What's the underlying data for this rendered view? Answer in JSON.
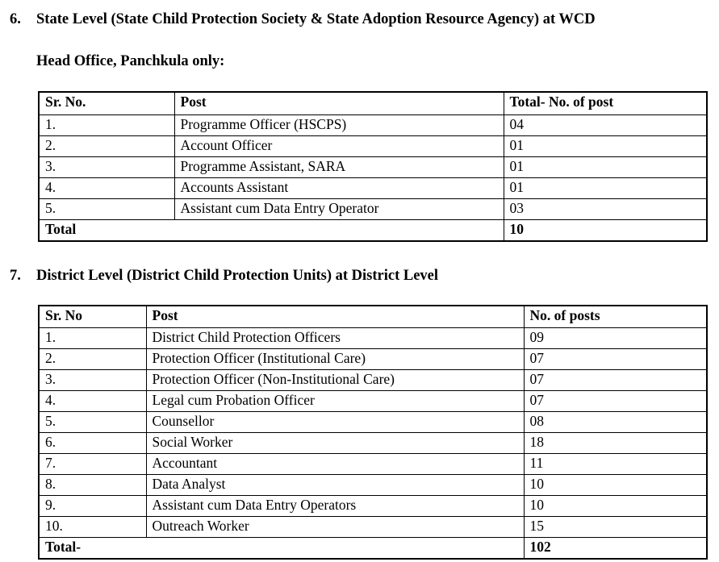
{
  "colors": {
    "background": "#ffffff",
    "text": "#000000",
    "table_border": "#000000"
  },
  "sections": [
    {
      "number": "6.",
      "heading_line1": "State Level (State Child Protection Society & State Adoption Resource Agency) at WCD",
      "heading_line2": "Head Office, Panchkula only:",
      "table": {
        "col_headers": [
          "Sr. No.",
          "Post",
          "Total- No. of post"
        ],
        "rows": [
          {
            "sr": "1.",
            "post": "Programme Officer (HSCPS)",
            "count": "04"
          },
          {
            "sr": "2.",
            "post": "Account Officer",
            "count": "01"
          },
          {
            "sr": "3.",
            "post": "Programme Assistant, SARA",
            "count": "01"
          },
          {
            "sr": "4.",
            "post": "Accounts Assistant",
            "count": "01"
          },
          {
            "sr": "5.",
            "post": "Assistant cum Data Entry Operator",
            "count": "03"
          }
        ],
        "total_label": "Total",
        "total_value": "10"
      }
    },
    {
      "number": "7.",
      "heading_line1": "District Level (District Child Protection Units) at District Level",
      "table": {
        "col_headers": [
          "Sr. No",
          "Post",
          "No. of posts"
        ],
        "rows": [
          {
            "sr": "1.",
            "post": "District Child Protection Officers",
            "count": "09"
          },
          {
            "sr": "2.",
            "post": "Protection Officer (Institutional Care)",
            "count": "07"
          },
          {
            "sr": "3.",
            "post": "Protection Officer (Non-Institutional Care)",
            "count": "07"
          },
          {
            "sr": "4.",
            "post": "Legal cum Probation Officer",
            "count": "07"
          },
          {
            "sr": "5.",
            "post": "Counsellor",
            "count": "08"
          },
          {
            "sr": "6.",
            "post": "Social Worker",
            "count": "18"
          },
          {
            "sr": "7.",
            "post": "Accountant",
            "count": "11"
          },
          {
            "sr": "8.",
            "post": "Data Analyst",
            "count": "10"
          },
          {
            "sr": "9.",
            "post": "Assistant cum Data Entry Operators",
            "count": "10"
          },
          {
            "sr": "10.",
            "post": "Outreach Worker",
            "count": "15"
          }
        ],
        "total_label": "Total-",
        "total_value": "102"
      }
    }
  ]
}
